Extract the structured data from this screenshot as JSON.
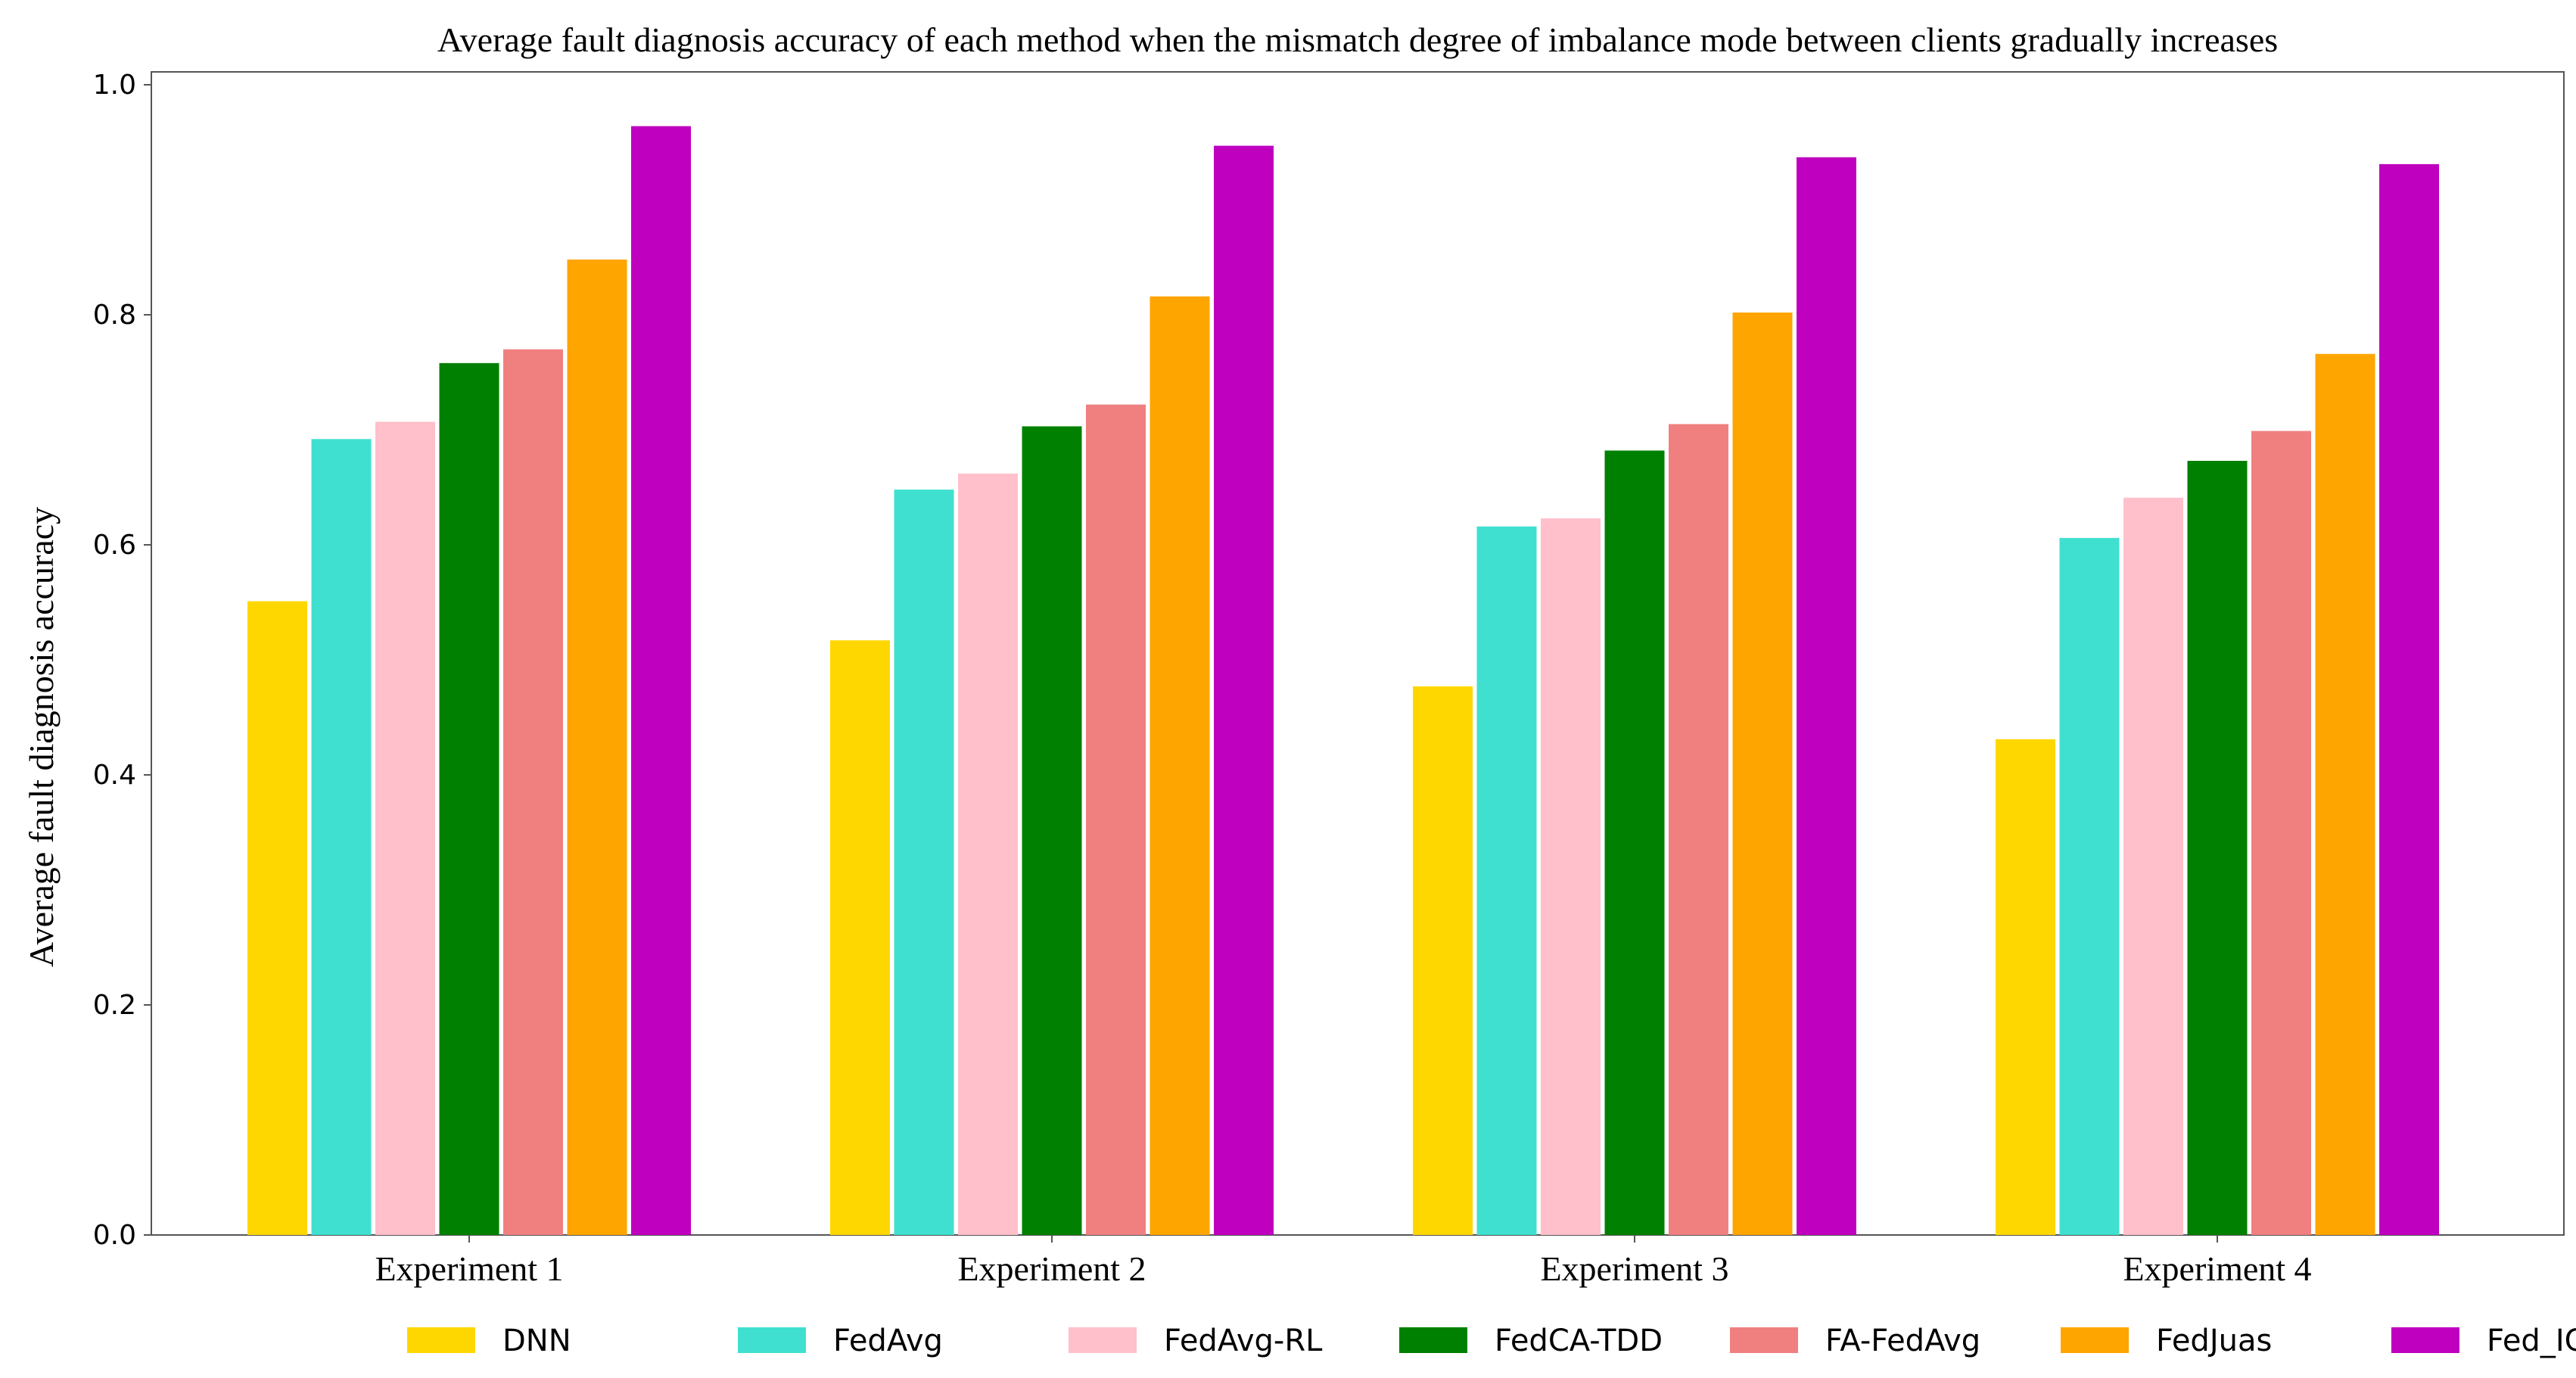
{
  "chart_data": {
    "type": "bar",
    "title": "Average fault diagnosis accuracy of each method when the mismatch degree of imbalance mode between clients gradually increases",
    "xlabel": "",
    "ylabel": "Average fault diagnosis accuracy",
    "categories": [
      "Experiment 1",
      "Experiment 2",
      "Experiment 3",
      "Experiment 4"
    ],
    "ylim": [
      0,
      1.0
    ],
    "yticks": [
      "0.0",
      "0.2",
      "0.4",
      "0.6",
      "0.8",
      "1.0"
    ],
    "grid": false,
    "legend_position": "bottom",
    "series": [
      {
        "name": "DNN",
        "color": "#FFD700",
        "values": [
          0.551,
          0.517,
          0.477,
          0.431
        ]
      },
      {
        "name": "FedAvg",
        "color": "#40E0D0",
        "values": [
          0.692,
          0.648,
          0.616,
          0.606
        ]
      },
      {
        "name": "FedAvg-RL",
        "color": "#FFC0CB",
        "values": [
          0.707,
          0.662,
          0.623,
          0.641
        ]
      },
      {
        "name": "FedCA-TDD",
        "color": "#008000",
        "values": [
          0.758,
          0.703,
          0.682,
          0.673
        ]
      },
      {
        "name": "FA-FedAvg",
        "color": "#F08080",
        "values": [
          0.77,
          0.722,
          0.705,
          0.699
        ]
      },
      {
        "name": "FedJuas",
        "color": "#FFA500",
        "values": [
          0.848,
          0.816,
          0.802,
          0.766
        ]
      },
      {
        "name": "Fed_ICID",
        "color": "#BF00BF",
        "values": [
          0.964,
          0.947,
          0.937,
          0.931
        ]
      }
    ]
  }
}
